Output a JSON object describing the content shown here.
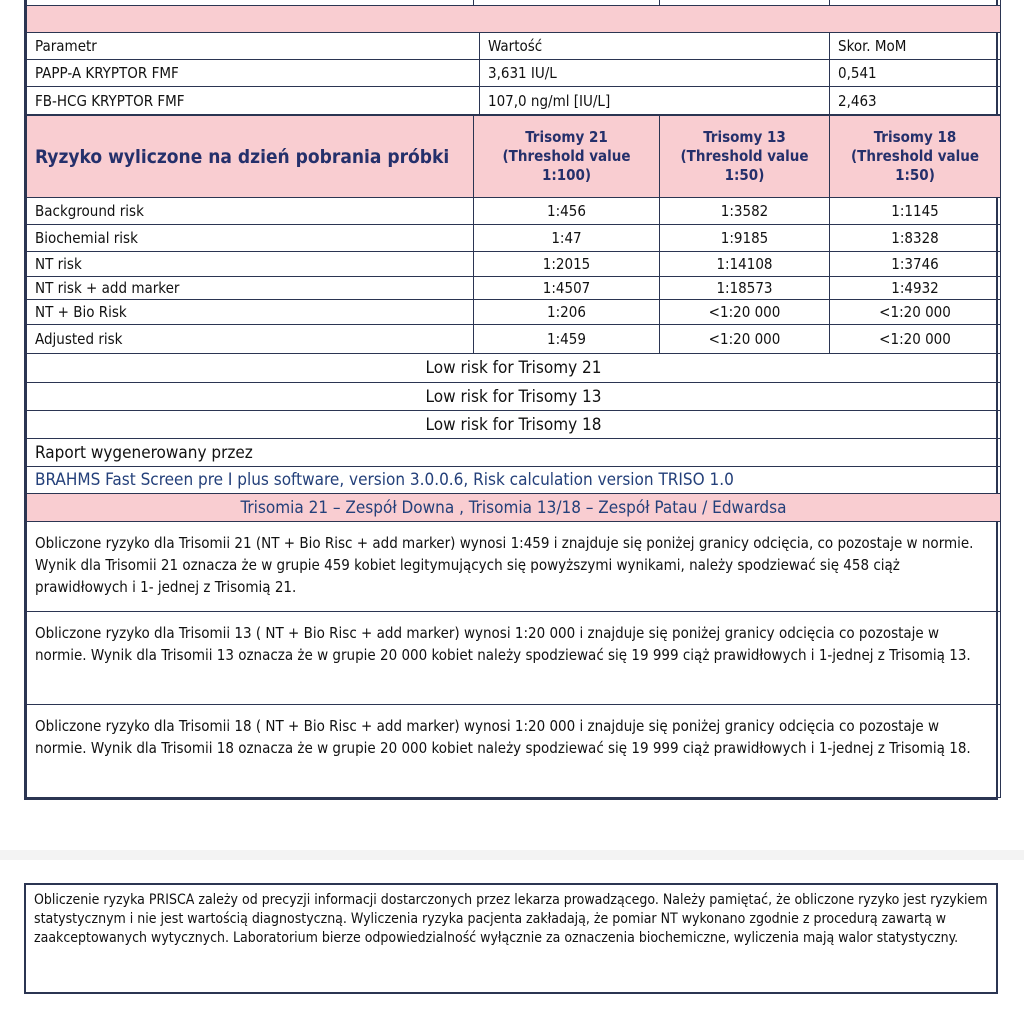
{
  "params": {
    "headers": [
      "Parametr",
      "Wartość",
      "Skor. MoM"
    ],
    "rows": [
      [
        "PAPP-A  KRYPTOR FMF",
        "3,631 IU/L",
        "0,541"
      ],
      [
        "FB-HCG  KRYPTOR FMF",
        "107,0 ng/ml [IU/L]",
        "2,463"
      ]
    ]
  },
  "risk": {
    "title": "Ryzyko wyliczone na dzień pobrania próbki",
    "columns": [
      {
        "name": "Trisomy 21",
        "threshold": "(Threshold value 1:100)"
      },
      {
        "name": "Trisomy 13",
        "threshold": "(Threshold value 1:50)"
      },
      {
        "name": "Trisomy 18",
        "threshold": "(Threshold value 1:50)"
      }
    ],
    "rows": [
      [
        "Background risk",
        "1:456",
        "1:3582",
        "1:1145"
      ],
      [
        "Biochemial risk",
        "1:47",
        "1:9185",
        "1:8328"
      ],
      [
        "NT risk",
        "1:2015",
        "1:14108",
        "1:3746"
      ],
      [
        "NT risk + add marker",
        "1:4507",
        "1:18573",
        "1:4932"
      ],
      [
        "NT + Bio Risk",
        "1:206",
        "<1:20 000",
        "<1:20 000"
      ],
      [
        "Adjusted risk",
        "1:459",
        "<1:20 000",
        "<1:20 000"
      ]
    ],
    "conclusions": [
      "Low risk for Trisomy  21",
      "Low risk for Trisomy 13",
      "Low risk for Trisomy 18"
    ]
  },
  "report": {
    "label": "Raport wygenerowany przez",
    "software": "BRAHMS Fast Screen pre I plus software, version 3.0.0.6, Risk calculation version TRISO 1.0",
    "syndromes": "Trisomia 21 – Zespół Downa , Trisomia 13/18 – Zespół Patau / Edwardsa"
  },
  "paragraphs": [
    "Obliczone ryzyko dla Trisomii 21 (NT + Bio Risc + add marker) wynosi 1:459 i znajduje się  poniżej granicy odcięcia, co pozostaje w normie. Wynik dla Trisomii 21 oznacza że  w grupie 459 kobiet legitymujących się powyższymi wynikami, należy spodziewać się 458 ciąż prawidłowych i 1- jednej z Trisomią 21.",
    "Obliczone ryzyko dla Trisomii 13 ( NT + Bio Risc + add marker)  wynosi 1:20 000 i znajduje się poniżej granicy odcięcia co pozostaje w normie. Wynik dla Trisomii 13  oznacza że w grupie 20 000 kobiet należy spodziewać się 19 999 ciąż prawidłowych i 1-jednej z Trisomią 13.",
    "Obliczone ryzyko dla Trisomii 18  ( NT + Bio Risc + add marker)  wynosi 1:20 000 i znajduje się poniżej granicy odcięcia co pozostaje w normie. Wynik dla Trisomii 18 oznacza że w grupie 20 000 kobiet należy spodziewać się 19 999 ciąż prawidłowych i 1-jednej z Trisomią 18."
  ],
  "disclaimer": "Obliczenie ryzyka PRISCA zależy od precyzji informacji dostarczonych przez lekarza prowadzącego. Należy pamiętać, że obliczone ryzyko jest ryzykiem statystycznym i nie jest wartością diagnostyczną. Wyliczenia ryzyka pacjenta zakładają, że pomiar NT wykonano zgodnie z procedurą zawartą w zaakceptowanych wytycznych.  Laboratorium bierze odpowiedzialność wyłącznie za oznaczenia biochemiczne, wyliczenia mają walor statystyczny.",
  "colors": {
    "pink": "#f9cdd1",
    "border": "#2b3552",
    "heading": "#25306b",
    "software_text": "#24407a"
  }
}
